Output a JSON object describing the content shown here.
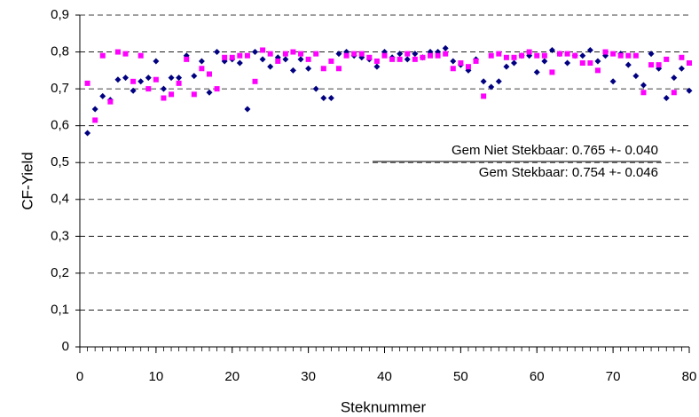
{
  "chart_data": {
    "type": "scatter",
    "x_label": "Steknummer",
    "y_label": "CF-Yield",
    "annotations": [
      "Gem Niet Stekbaar: 0.765 +- 0.040",
      "Gem Stekbaar: 0.754 +- 0.046"
    ],
    "x": [
      1,
      2,
      3,
      4,
      5,
      6,
      7,
      8,
      9,
      10,
      11,
      12,
      13,
      14,
      15,
      16,
      17,
      18,
      19,
      20,
      21,
      22,
      23,
      24,
      25,
      26,
      27,
      28,
      29,
      30,
      31,
      32,
      33,
      34,
      35,
      36,
      37,
      38,
      39,
      40,
      41,
      42,
      43,
      44,
      45,
      46,
      47,
      48,
      49,
      50,
      51,
      52,
      53,
      54,
      55,
      56,
      57,
      58,
      59,
      60,
      61,
      62,
      63,
      64,
      65,
      66,
      67,
      68,
      69,
      70,
      71,
      72,
      73,
      74,
      75,
      76,
      77,
      78,
      79,
      80
    ],
    "series": [
      {
        "color": "#000080",
        "marker": "diamond",
        "values": [
          0.58,
          0.645,
          0.68,
          0.67,
          0.725,
          0.73,
          0.695,
          0.72,
          0.73,
          0.775,
          0.7,
          0.73,
          0.73,
          0.79,
          0.735,
          0.775,
          0.69,
          0.8,
          0.775,
          0.78,
          0.77,
          0.645,
          0.8,
          0.78,
          0.76,
          0.785,
          0.78,
          0.75,
          0.78,
          0.755,
          0.7,
          0.675,
          0.675,
          0.795,
          0.8,
          0.79,
          0.785,
          0.78,
          0.76,
          0.8,
          0.785,
          0.795,
          0.78,
          0.795,
          0.785,
          0.8,
          0.8,
          0.81,
          0.775,
          0.765,
          0.75,
          0.78,
          0.72,
          0.705,
          0.72,
          0.76,
          0.77,
          0.79,
          0.79,
          0.745,
          0.775,
          0.805,
          0.795,
          0.77,
          0.79,
          0.79,
          0.805,
          0.775,
          0.79,
          0.72,
          0.795,
          0.765,
          0.735,
          0.71,
          0.795,
          0.755,
          0.675,
          0.73,
          0.755,
          0.695
        ]
      },
      {
        "color": "#ff00ff",
        "marker": "square",
        "values": [
          0.715,
          0.615,
          0.79,
          0.665,
          0.8,
          0.795,
          0.72,
          0.79,
          0.7,
          0.725,
          0.675,
          0.685,
          0.715,
          0.78,
          0.685,
          0.755,
          0.74,
          0.7,
          0.785,
          0.785,
          0.79,
          0.79,
          0.72,
          0.805,
          0.795,
          0.775,
          0.795,
          0.8,
          0.795,
          0.78,
          0.795,
          0.755,
          0.775,
          0.755,
          0.79,
          0.795,
          0.795,
          0.785,
          0.775,
          0.79,
          0.78,
          0.78,
          0.795,
          0.78,
          0.785,
          0.79,
          0.79,
          0.795,
          0.755,
          0.77,
          0.76,
          0.775,
          0.68,
          0.79,
          0.795,
          0.785,
          0.785,
          0.79,
          0.8,
          0.79,
          0.79,
          0.745,
          0.795,
          0.795,
          0.79,
          0.77,
          0.77,
          0.75,
          0.8,
          0.795,
          0.79,
          0.79,
          0.79,
          0.69,
          0.765,
          0.765,
          0.78,
          0.69,
          0.785,
          0.77
        ]
      }
    ],
    "xlim": [
      0,
      80
    ],
    "xticks": [
      0,
      10,
      20,
      30,
      40,
      50,
      60,
      70,
      80
    ],
    "ylim": [
      0,
      0.9
    ],
    "yticks": [
      {
        "value": 0,
        "label": "0"
      },
      {
        "value": 0.1,
        "label": "0,1"
      },
      {
        "value": 0.2,
        "label": "0,2"
      },
      {
        "value": 0.3,
        "label": "0,3"
      },
      {
        "value": 0.4,
        "label": "0,4"
      },
      {
        "value": 0.5,
        "label": "0,5"
      },
      {
        "value": 0.6,
        "label": "0,6"
      },
      {
        "value": 0.7,
        "label": "0,7"
      },
      {
        "value": 0.8,
        "label": "0,8"
      },
      {
        "value": 0.9,
        "label": "0,9"
      }
    ],
    "grid": true
  }
}
